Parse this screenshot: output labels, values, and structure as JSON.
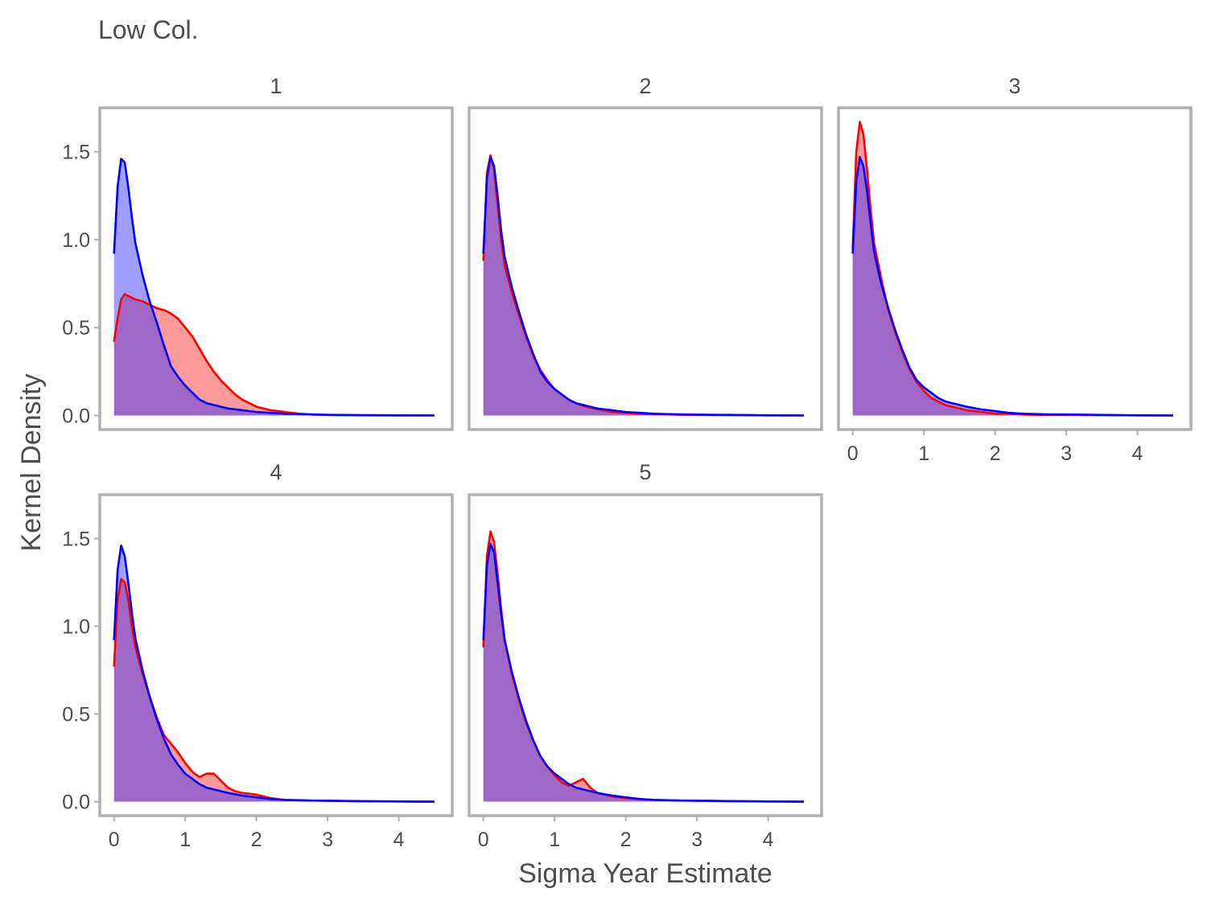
{
  "chart_data": {
    "type": "area",
    "title": "Low Col.",
    "xlabel": "Sigma Year Estimate",
    "ylabel": "Kernel Density",
    "xlim": [
      -0.2,
      4.75
    ],
    "ylim": [
      -0.08,
      1.75
    ],
    "x_ticks": [
      0,
      1,
      2,
      3,
      4
    ],
    "y_ticks": [
      0.0,
      0.5,
      1.0,
      1.5
    ],
    "x_tick_labels": [
      "0",
      "1",
      "2",
      "3",
      "4"
    ],
    "y_tick_labels": [
      "0.0",
      "0.5",
      "1.0",
      "1.5"
    ],
    "grid": false,
    "colors": {
      "series_red": "#ff0000",
      "series_blue": "#0000ff",
      "fill_red": "#ff2020",
      "fill_blue": "#2a2aff",
      "panel_border": "#b0b0b0",
      "text": "#4d4d4d"
    },
    "panels": [
      {
        "label": "1",
        "series": [
          {
            "color": "red",
            "x": [
              0,
              0.05,
              0.1,
              0.15,
              0.2,
              0.3,
              0.4,
              0.5,
              0.6,
              0.7,
              0.8,
              0.9,
              1.0,
              1.1,
              1.2,
              1.3,
              1.4,
              1.5,
              1.6,
              1.7,
              1.8,
              1.9,
              2.0,
              2.2,
              2.4,
              2.6,
              2.8,
              3.0,
              3.5,
              4.0,
              4.5
            ],
            "y": [
              0.42,
              0.55,
              0.66,
              0.69,
              0.68,
              0.66,
              0.65,
              0.63,
              0.61,
              0.6,
              0.58,
              0.55,
              0.5,
              0.45,
              0.38,
              0.31,
              0.25,
              0.2,
              0.16,
              0.12,
              0.09,
              0.07,
              0.05,
              0.03,
              0.02,
              0.01,
              0.005,
              0.003,
              0.001,
              0.0005,
              0.0
            ]
          },
          {
            "color": "blue",
            "x": [
              0,
              0.05,
              0.1,
              0.15,
              0.2,
              0.25,
              0.3,
              0.4,
              0.5,
              0.6,
              0.7,
              0.8,
              0.9,
              1.0,
              1.1,
              1.2,
              1.3,
              1.4,
              1.5,
              1.6,
              1.8,
              2.0,
              2.2,
              2.4,
              2.6,
              2.8,
              3.0,
              3.5,
              4.0,
              4.5
            ],
            "y": [
              0.92,
              1.3,
              1.46,
              1.44,
              1.3,
              1.13,
              0.98,
              0.8,
              0.65,
              0.53,
              0.4,
              0.28,
              0.22,
              0.17,
              0.13,
              0.09,
              0.07,
              0.06,
              0.05,
              0.04,
              0.03,
              0.02,
              0.015,
              0.01,
              0.008,
              0.006,
              0.004,
              0.002,
              0.001,
              0.0
            ]
          }
        ]
      },
      {
        "label": "2",
        "series": [
          {
            "color": "red",
            "x": [
              0,
              0.05,
              0.1,
              0.15,
              0.2,
              0.25,
              0.3,
              0.4,
              0.5,
              0.6,
              0.7,
              0.8,
              0.9,
              1.0,
              1.1,
              1.2,
              1.3,
              1.4,
              1.5,
              1.6,
              1.8,
              2.0,
              2.2,
              2.4,
              2.6,
              2.8,
              3.0,
              3.5,
              4.0,
              4.5
            ],
            "y": [
              0.88,
              1.38,
              1.48,
              1.4,
              1.2,
              1.0,
              0.85,
              0.7,
              0.57,
              0.45,
              0.34,
              0.26,
              0.2,
              0.15,
              0.12,
              0.09,
              0.07,
              0.055,
              0.045,
              0.035,
              0.02,
              0.015,
              0.01,
              0.008,
              0.006,
              0.004,
              0.003,
              0.002,
              0.001,
              0.0
            ]
          },
          {
            "color": "blue",
            "x": [
              0,
              0.05,
              0.1,
              0.15,
              0.2,
              0.25,
              0.3,
              0.4,
              0.5,
              0.6,
              0.7,
              0.8,
              0.9,
              1.0,
              1.1,
              1.2,
              1.3,
              1.4,
              1.5,
              1.6,
              1.8,
              2.0,
              2.2,
              2.4,
              2.6,
              2.8,
              3.0,
              3.5,
              4.0,
              4.5
            ],
            "y": [
              0.92,
              1.35,
              1.47,
              1.42,
              1.25,
              1.05,
              0.9,
              0.73,
              0.59,
              0.46,
              0.35,
              0.25,
              0.19,
              0.15,
              0.12,
              0.09,
              0.07,
              0.06,
              0.05,
              0.04,
              0.03,
              0.02,
              0.015,
              0.01,
              0.008,
              0.006,
              0.005,
              0.003,
              0.001,
              0.0
            ]
          }
        ]
      },
      {
        "label": "3",
        "series": [
          {
            "color": "red",
            "x": [
              0,
              0.05,
              0.1,
              0.15,
              0.2,
              0.25,
              0.3,
              0.4,
              0.5,
              0.6,
              0.7,
              0.8,
              0.9,
              1.0,
              1.1,
              1.2,
              1.3,
              1.4,
              1.5,
              1.6,
              1.8,
              2.0,
              2.2,
              2.4,
              2.6,
              2.8,
              3.0,
              3.5,
              4.0,
              4.5
            ],
            "y": [
              0.95,
              1.5,
              1.67,
              1.6,
              1.4,
              1.18,
              0.98,
              0.78,
              0.6,
              0.47,
              0.36,
              0.26,
              0.19,
              0.14,
              0.1,
              0.08,
              0.06,
              0.05,
              0.04,
              0.03,
              0.02,
              0.01,
              0.01,
              0.005,
              0.004,
              0.003,
              0.003,
              0.002,
              0.001,
              0.0
            ]
          },
          {
            "color": "blue",
            "x": [
              0,
              0.05,
              0.1,
              0.15,
              0.2,
              0.25,
              0.3,
              0.4,
              0.5,
              0.6,
              0.7,
              0.8,
              0.9,
              1.0,
              1.1,
              1.2,
              1.3,
              1.4,
              1.5,
              1.6,
              1.8,
              2.0,
              2.2,
              2.4,
              2.6,
              2.8,
              3.0,
              3.5,
              4.0,
              4.5
            ],
            "y": [
              0.92,
              1.33,
              1.47,
              1.42,
              1.28,
              1.1,
              0.93,
              0.75,
              0.61,
              0.48,
              0.37,
              0.27,
              0.2,
              0.16,
              0.13,
              0.1,
              0.08,
              0.07,
              0.06,
              0.05,
              0.035,
              0.025,
              0.015,
              0.01,
              0.008,
              0.006,
              0.006,
              0.003,
              0.001,
              0.0
            ]
          }
        ]
      },
      {
        "label": "4",
        "series": [
          {
            "color": "red",
            "x": [
              0,
              0.05,
              0.1,
              0.15,
              0.2,
              0.25,
              0.3,
              0.4,
              0.5,
              0.6,
              0.7,
              0.8,
              0.9,
              1.0,
              1.1,
              1.2,
              1.3,
              1.4,
              1.5,
              1.6,
              1.7,
              1.8,
              2.0,
              2.2,
              2.4,
              2.6,
              2.8,
              3.0,
              3.5,
              4.0,
              4.5
            ],
            "y": [
              0.77,
              1.15,
              1.27,
              1.25,
              1.15,
              1.0,
              0.88,
              0.73,
              0.6,
              0.48,
              0.38,
              0.33,
              0.28,
              0.22,
              0.17,
              0.14,
              0.16,
              0.16,
              0.12,
              0.08,
              0.06,
              0.05,
              0.04,
              0.02,
              0.01,
              0.008,
              0.006,
              0.005,
              0.002,
              0.001,
              0.0
            ]
          },
          {
            "color": "blue",
            "x": [
              0,
              0.05,
              0.1,
              0.15,
              0.2,
              0.25,
              0.3,
              0.4,
              0.5,
              0.6,
              0.7,
              0.8,
              0.9,
              1.0,
              1.1,
              1.2,
              1.3,
              1.4,
              1.5,
              1.6,
              1.8,
              2.0,
              2.2,
              2.4,
              2.6,
              2.8,
              3.0,
              3.5,
              4.0,
              4.5
            ],
            "y": [
              0.92,
              1.32,
              1.46,
              1.4,
              1.25,
              1.08,
              0.93,
              0.75,
              0.6,
              0.47,
              0.36,
              0.27,
              0.21,
              0.16,
              0.13,
              0.1,
              0.08,
              0.07,
              0.06,
              0.05,
              0.035,
              0.025,
              0.015,
              0.01,
              0.008,
              0.006,
              0.005,
              0.003,
              0.001,
              0.0
            ]
          }
        ]
      },
      {
        "label": "5",
        "series": [
          {
            "color": "red",
            "x": [
              0,
              0.05,
              0.1,
              0.15,
              0.2,
              0.25,
              0.3,
              0.4,
              0.5,
              0.6,
              0.7,
              0.8,
              0.9,
              1.0,
              1.1,
              1.2,
              1.3,
              1.4,
              1.5,
              1.6,
              1.8,
              2.0,
              2.2,
              2.4,
              2.6,
              2.8,
              3.0,
              3.5,
              4.0,
              4.5
            ],
            "y": [
              0.88,
              1.4,
              1.54,
              1.48,
              1.3,
              1.1,
              0.92,
              0.73,
              0.58,
              0.45,
              0.35,
              0.26,
              0.2,
              0.15,
              0.11,
              0.09,
              0.11,
              0.13,
              0.08,
              0.05,
              0.03,
              0.02,
              0.015,
              0.01,
              0.008,
              0.006,
              0.005,
              0.003,
              0.001,
              0.0
            ]
          },
          {
            "color": "blue",
            "x": [
              0,
              0.05,
              0.1,
              0.15,
              0.2,
              0.25,
              0.3,
              0.4,
              0.5,
              0.6,
              0.7,
              0.8,
              0.9,
              1.0,
              1.1,
              1.2,
              1.3,
              1.4,
              1.5,
              1.6,
              1.8,
              2.0,
              2.2,
              2.4,
              2.6,
              2.8,
              3.0,
              3.5,
              4.0,
              4.5
            ],
            "y": [
              0.92,
              1.35,
              1.47,
              1.42,
              1.25,
              1.07,
              0.92,
              0.74,
              0.59,
              0.46,
              0.35,
              0.26,
              0.2,
              0.16,
              0.13,
              0.1,
              0.08,
              0.07,
              0.06,
              0.05,
              0.035,
              0.025,
              0.015,
              0.01,
              0.008,
              0.006,
              0.005,
              0.003,
              0.001,
              0.0
            ]
          }
        ]
      }
    ]
  }
}
